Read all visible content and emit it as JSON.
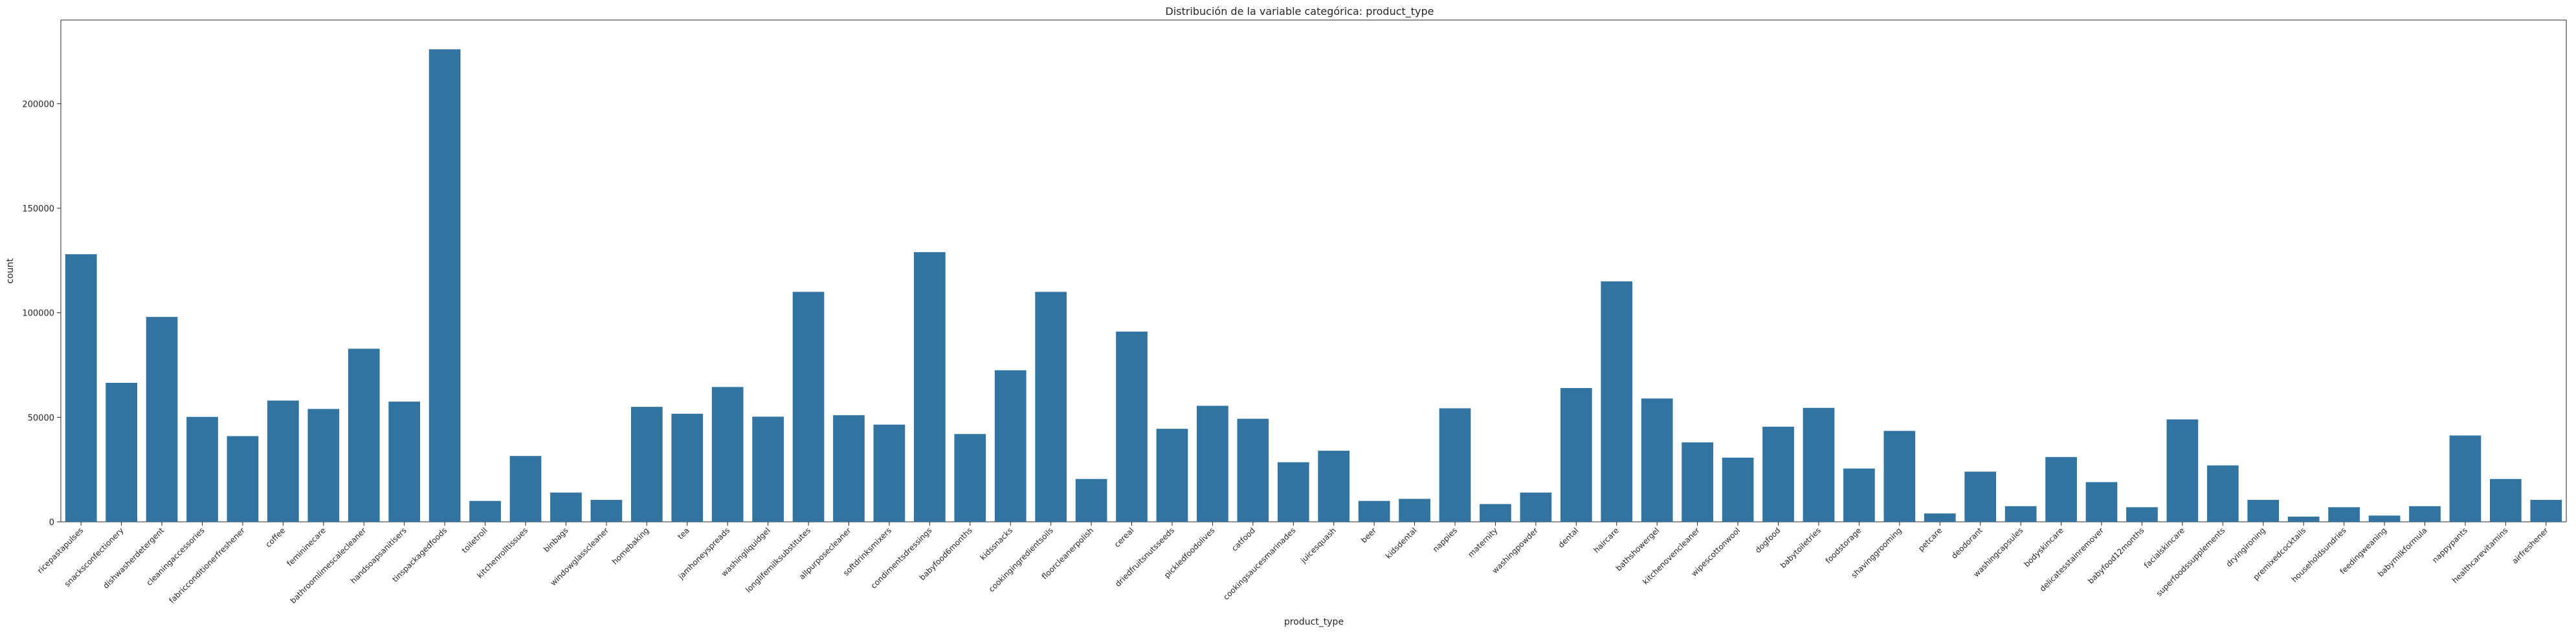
{
  "chart_data": {
    "type": "bar",
    "title": "Distribución de la variable categórica: product_type",
    "xlabel": "product_type",
    "ylabel": "count",
    "ylim": [
      0,
      240000
    ],
    "yticks": [
      0,
      50000,
      100000,
      150000,
      200000
    ],
    "bar_color": "#3274a1",
    "grid": false,
    "categories": [
      "ricepastapulses",
      "snacksconfectionery",
      "dishwasherdetergent",
      "cleaningaccessories",
      "fabricconditionerfreshener",
      "coffee",
      "femininecare",
      "bathroomlimescalecleaner",
      "handsoapsanitisers",
      "tinspackagedfoods",
      "toiletroll",
      "kitchenrolltissues",
      "binbags",
      "windowglasscleaner",
      "homebaking",
      "tea",
      "jamhoneyspreads",
      "washingliquidgel",
      "longlifemilksubstitutes",
      "allpurposecleaner",
      "softdrinksmixers",
      "condimentsdressings",
      "babyfood6months",
      "kidssnacks",
      "cookingingredientsoils",
      "floorcleanerpolish",
      "cereal",
      "driedfruitsnutsseeds",
      "pickledfoodolives",
      "catfood",
      "cookingsaucesmarinades",
      "juicesquash",
      "beer",
      "kidsdental",
      "nappies",
      "maternity",
      "washingpowder",
      "dental",
      "haircare",
      "bathshowergel",
      "kitchenovencleaner",
      "wipescottonwool",
      "dogfood",
      "babytoiletries",
      "foodstorage",
      "shavinggrooming",
      "petcare",
      "deodorant",
      "washingcapsules",
      "bodyskincare",
      "delicatesstainremover",
      "babyfood12months",
      "facialskincare",
      "superfoodssupplements",
      "dryingironing",
      "premixedcocktails",
      "householdsundries",
      "feedingweaning",
      "babymilkformula",
      "nappypants",
      "healthcarevitamins",
      "airfreshener"
    ],
    "values": [
      128000,
      66500,
      98000,
      50200,
      41000,
      58000,
      54000,
      82800,
      57500,
      226000,
      10000,
      31500,
      14000,
      10500,
      55000,
      51700,
      64500,
      50300,
      110000,
      51000,
      46500,
      129000,
      42000,
      72500,
      110000,
      20500,
      91000,
      44500,
      55500,
      49300,
      28500,
      34000,
      10000,
      11000,
      54300,
      8500,
      14000,
      64000,
      115000,
      59000,
      38000,
      30700,
      45500,
      54500,
      25500,
      43500,
      4000,
      24000,
      7500,
      31000,
      19000,
      7000,
      49000,
      27000,
      10500,
      2500,
      7000,
      3000,
      7500,
      41300,
      20500,
      10500
    ]
  }
}
